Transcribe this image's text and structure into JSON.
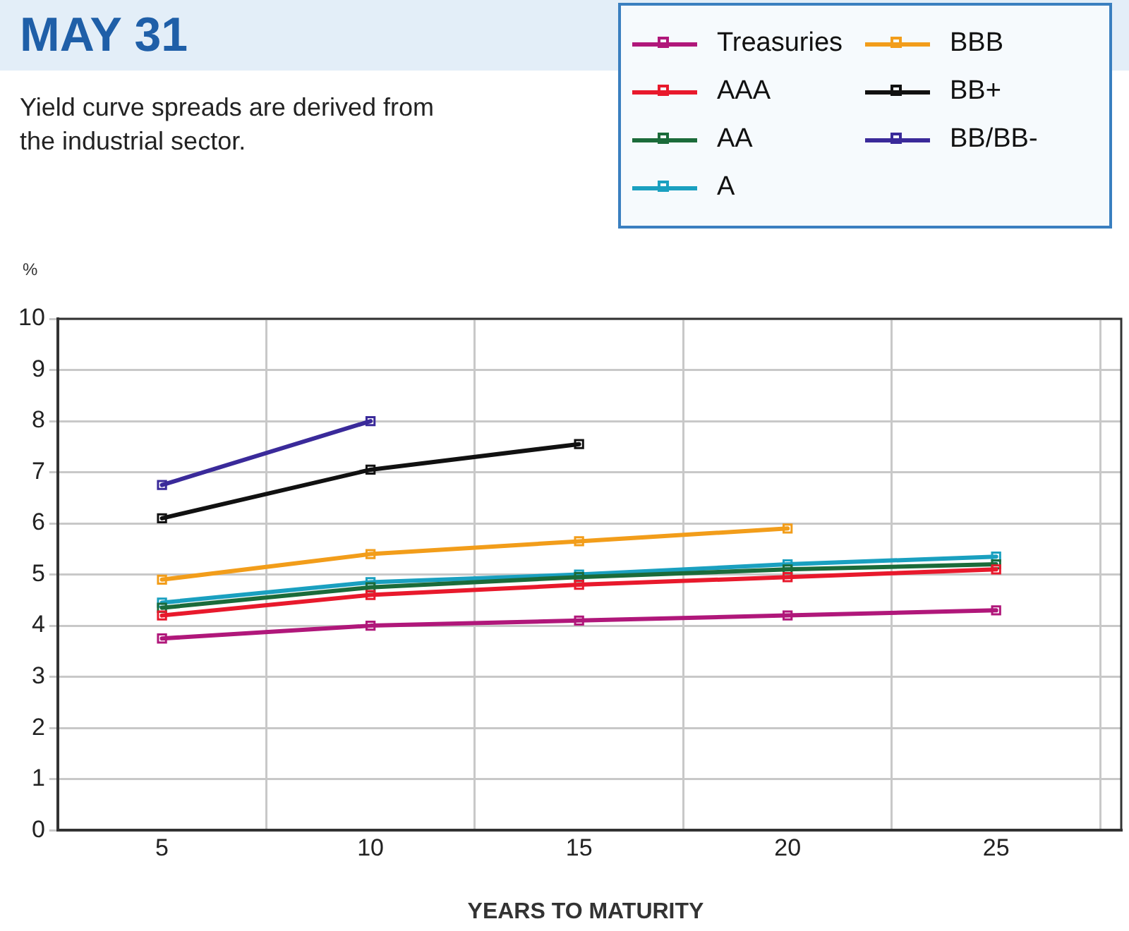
{
  "chart_data": {
    "type": "line",
    "title": "MAY 31",
    "subtitle": "Yield curve spreads are derived from the industrial sector.",
    "xlabel": "YEARS TO MATURITY",
    "ylabel": "%",
    "x": [
      5,
      10,
      15,
      20,
      25
    ],
    "series": [
      {
        "name": "Treasuries",
        "color": "#b0177a",
        "values": [
          3.75,
          4.0,
          4.1,
          4.2,
          4.3
        ]
      },
      {
        "name": "AAA",
        "color": "#e8192c",
        "values": [
          4.2,
          4.6,
          4.8,
          4.95,
          5.1
        ]
      },
      {
        "name": "AA",
        "color": "#1b6b3a",
        "values": [
          4.35,
          4.75,
          4.95,
          5.1,
          5.2
        ]
      },
      {
        "name": "A",
        "color": "#1aa0c0",
        "values": [
          4.45,
          4.85,
          5.0,
          5.2,
          5.35
        ]
      },
      {
        "name": "BBB",
        "color": "#f29d1a",
        "x": [
          5,
          10,
          15,
          20
        ],
        "values": [
          4.9,
          5.4,
          5.65,
          5.9
        ]
      },
      {
        "name": "BB+",
        "color": "#111111",
        "x": [
          5,
          10,
          15
        ],
        "values": [
          6.1,
          7.05,
          7.55
        ]
      },
      {
        "name": "BB/BB-",
        "color": "#3a2a9a",
        "x": [
          5,
          10
        ],
        "values": [
          6.75,
          8.0
        ]
      }
    ],
    "xlim": [
      2.5,
      28
    ],
    "xticks": [
      {
        "value": 2.5,
        "label": null
      },
      5,
      {
        "value": 7.5,
        "label": null
      },
      10,
      {
        "value": 12.5,
        "label": null
      },
      15,
      {
        "value": 17.5,
        "label": null
      },
      20,
      {
        "value": 22.5,
        "label": null
      },
      25,
      {
        "value": 27.5,
        "label": null
      }
    ],
    "ylim": [
      0,
      10
    ],
    "yticks": [
      0,
      1,
      2,
      3,
      4,
      5,
      6,
      7,
      8,
      9,
      10
    ],
    "grid": true,
    "legend": "top right",
    "marker": "square",
    "line_style": "solid"
  }
}
